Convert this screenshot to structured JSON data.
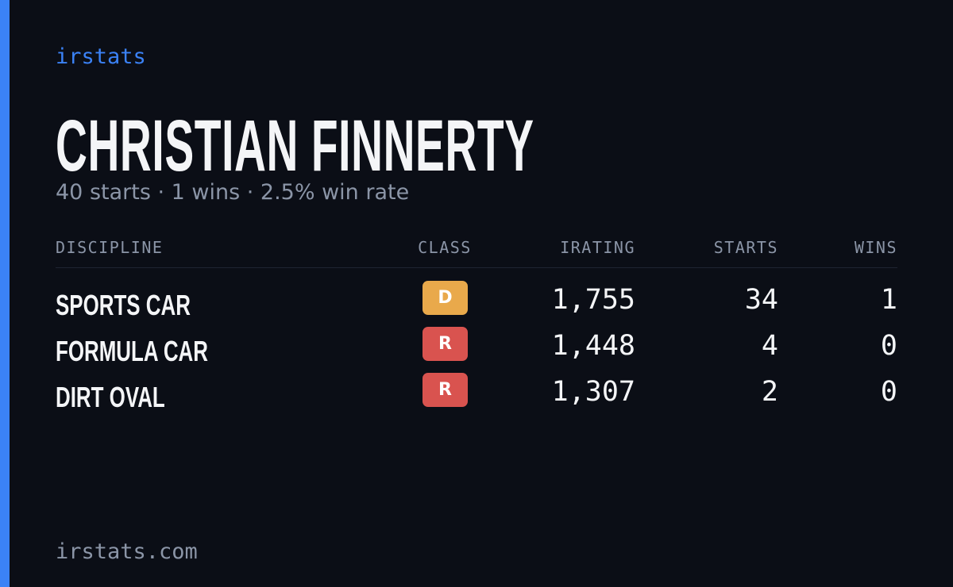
{
  "header": {
    "brand": "irstats",
    "name": "CHRISTIAN FINNERTY",
    "summary": "40 starts · 1 wins · 2.5% win rate"
  },
  "table": {
    "columns": [
      "DISCIPLINE",
      "CLASS",
      "IRATING",
      "STARTS",
      "WINS"
    ],
    "rows": [
      {
        "discipline": "SPORTS CAR",
        "class": "D",
        "class_color": "#e9a94b",
        "irating": "1,755",
        "starts": 34,
        "wins": 1
      },
      {
        "discipline": "FORMULA CAR",
        "class": "R",
        "class_color": "#d9534f",
        "irating": "1,448",
        "starts": 4,
        "wins": 0
      },
      {
        "discipline": "DIRT OVAL",
        "class": "R",
        "class_color": "#d9534f",
        "irating": "1,307",
        "starts": 2,
        "wins": 0
      }
    ]
  },
  "footer": {
    "site": "irstats.com"
  }
}
